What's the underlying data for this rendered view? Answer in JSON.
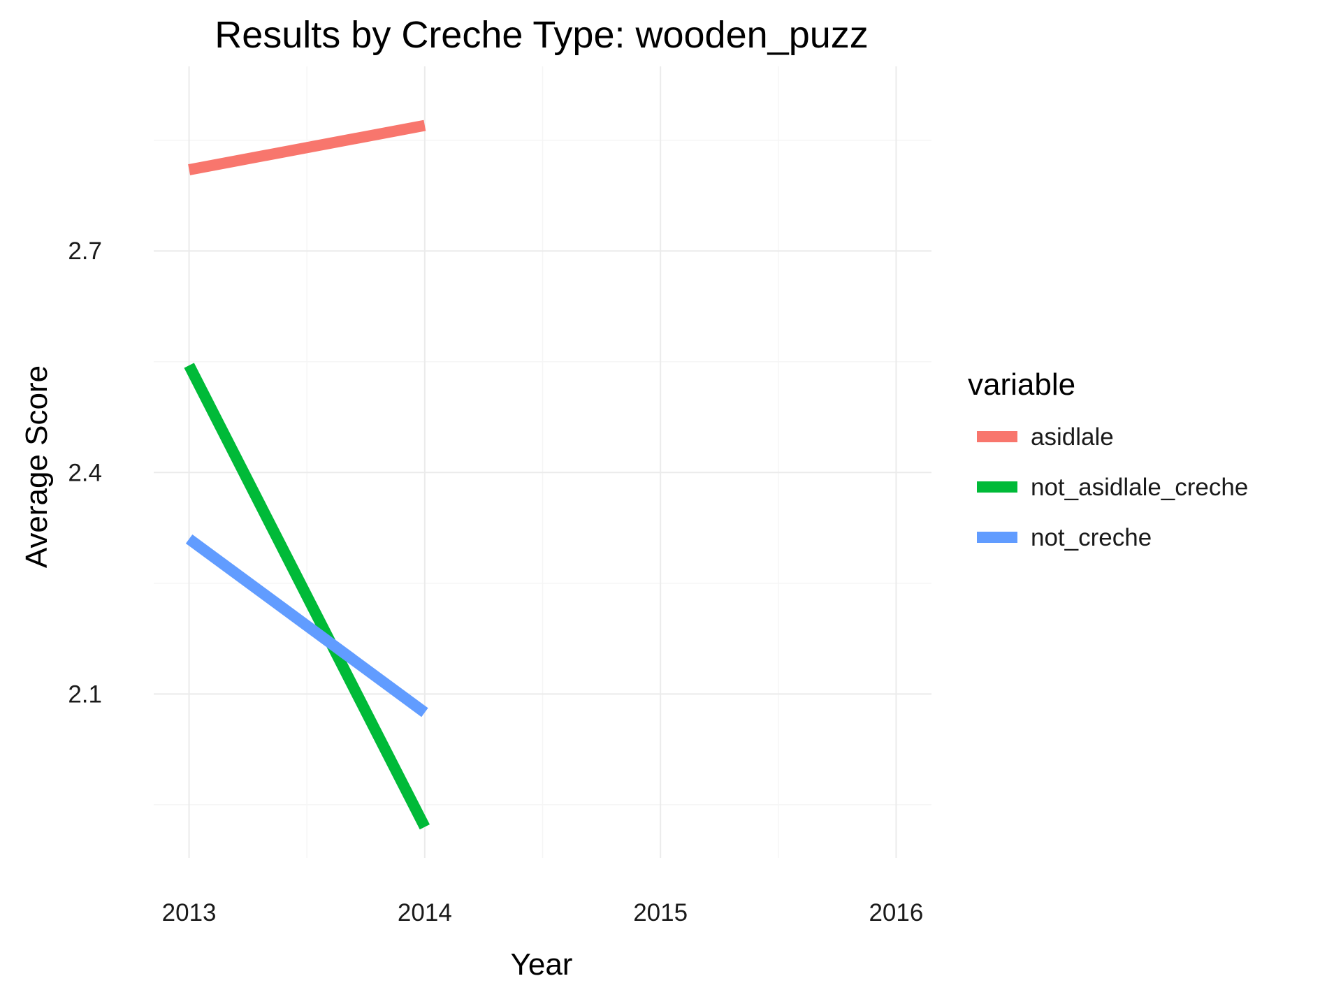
{
  "chart_data": {
    "type": "line",
    "title": "Results by Creche Type: wooden_puzz",
    "xlabel": "Year",
    "ylabel": "Average Score",
    "x_ticks": [
      2013,
      2014,
      2015,
      2016
    ],
    "x_tick_labels": [
      "2013",
      "2014",
      "2015",
      "2016"
    ],
    "y_ticks": [
      2.1,
      2.4,
      2.7
    ],
    "y_tick_labels": [
      "2.1",
      "2.4",
      "2.7"
    ],
    "xlim": [
      2012.85,
      2016.15
    ],
    "ylim": [
      1.878,
      2.95
    ],
    "grid": true,
    "legend": {
      "title": "variable",
      "placement": "right"
    },
    "series": [
      {
        "name": "asidlale",
        "color": "#F8766D",
        "x": [
          2013,
          2014
        ],
        "y": [
          2.81,
          2.87
        ]
      },
      {
        "name": "not_asidlale_creche",
        "color": "#00BA38",
        "x": [
          2013,
          2014
        ],
        "y": [
          2.545,
          1.92
        ]
      },
      {
        "name": "not_creche",
        "color": "#619CFF",
        "x": [
          2013,
          2014
        ],
        "y": [
          2.31,
          2.075
        ]
      }
    ]
  }
}
